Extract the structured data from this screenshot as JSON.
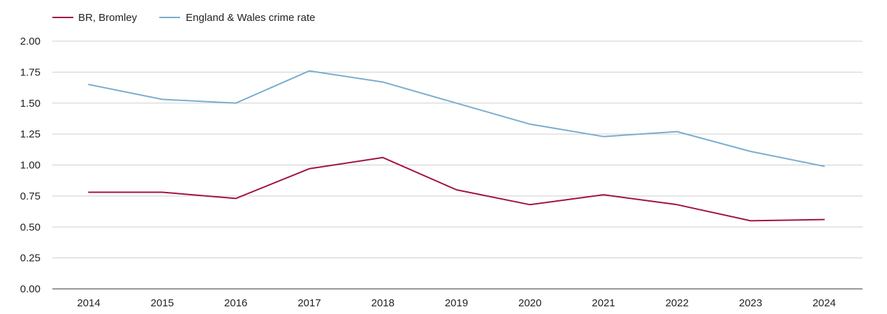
{
  "chart_data": {
    "type": "line",
    "title": "",
    "xlabel": "",
    "ylabel": "",
    "categories": [
      "2014",
      "2015",
      "2016",
      "2017",
      "2018",
      "2019",
      "2020",
      "2021",
      "2022",
      "2023",
      "2024"
    ],
    "ylim": [
      0,
      2
    ],
    "y_ticks": [
      "0.00",
      "0.25",
      "0.50",
      "0.75",
      "1.00",
      "1.25",
      "1.50",
      "1.75",
      "2.00"
    ],
    "grid": true,
    "legend_position": "top-left",
    "series": [
      {
        "name": "BR, Bromley",
        "color": "#a0143c",
        "values": [
          0.78,
          0.78,
          0.73,
          0.97,
          1.06,
          0.8,
          0.68,
          0.76,
          0.68,
          0.55,
          0.56
        ]
      },
      {
        "name": "England & Wales crime rate",
        "color": "#7aadcf",
        "values": [
          1.65,
          1.53,
          1.5,
          1.76,
          1.67,
          1.5,
          1.33,
          1.23,
          1.27,
          1.11,
          0.99
        ]
      }
    ]
  }
}
